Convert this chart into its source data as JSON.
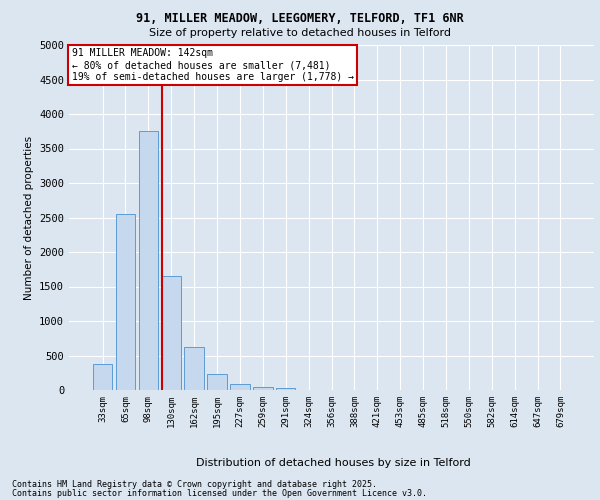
{
  "title_line1": "91, MILLER MEADOW, LEEGOMERY, TELFORD, TF1 6NR",
  "title_line2": "Size of property relative to detached houses in Telford",
  "xlabel": "Distribution of detached houses by size in Telford",
  "ylabel": "Number of detached properties",
  "categories": [
    "33sqm",
    "65sqm",
    "98sqm",
    "130sqm",
    "162sqm",
    "195sqm",
    "227sqm",
    "259sqm",
    "291sqm",
    "324sqm",
    "356sqm",
    "388sqm",
    "421sqm",
    "453sqm",
    "485sqm",
    "518sqm",
    "550sqm",
    "582sqm",
    "614sqm",
    "647sqm",
    "679sqm"
  ],
  "values": [
    380,
    2550,
    3760,
    1650,
    620,
    230,
    90,
    50,
    30,
    0,
    0,
    0,
    0,
    0,
    0,
    0,
    0,
    0,
    0,
    0,
    0
  ],
  "bar_color": "#c5d8ed",
  "bar_edge_color": "#5b9bd5",
  "vline_x_index": 3,
  "bar_width": 0.85,
  "vline_color": "#cc0000",
  "annotation_text": "91 MILLER MEADOW: 142sqm\n← 80% of detached houses are smaller (7,481)\n19% of semi-detached houses are larger (1,778) →",
  "annotation_box_color": "#ffffff",
  "annotation_box_edge": "#cc0000",
  "ylim": [
    0,
    5000
  ],
  "yticks": [
    0,
    500,
    1000,
    1500,
    2000,
    2500,
    3000,
    3500,
    4000,
    4500,
    5000
  ],
  "background_color": "#dce6f1",
  "plot_bg_color": "#dce6f1",
  "grid_color": "#ffffff",
  "footer_line1": "Contains HM Land Registry data © Crown copyright and database right 2025.",
  "footer_line2": "Contains public sector information licensed under the Open Government Licence v3.0."
}
